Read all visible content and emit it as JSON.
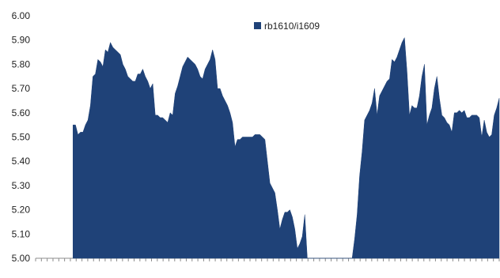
{
  "chart_data": {
    "type": "area",
    "title": "",
    "xlabel": "",
    "ylabel": "",
    "ylim": [
      5.0,
      6.0
    ],
    "yticks": [
      "6.00",
      "5.90",
      "5.80",
      "5.70",
      "5.60",
      "5.50",
      "5.40",
      "5.30",
      "5.20",
      "5.10",
      "5.00"
    ],
    "grid": false,
    "legend_position": "top-center",
    "series": [
      {
        "name": "rb1610/i1609",
        "color": "#1f4278",
        "values": [
          null,
          null,
          null,
          null,
          null,
          null,
          null,
          null,
          null,
          null,
          null,
          null,
          null,
          null,
          null,
          5.55,
          5.55,
          5.51,
          5.52,
          5.52,
          5.55,
          5.57,
          5.63,
          5.75,
          5.76,
          5.82,
          5.81,
          5.79,
          5.86,
          5.85,
          5.89,
          5.87,
          5.86,
          5.85,
          5.84,
          5.8,
          5.78,
          5.75,
          5.74,
          5.73,
          5.73,
          5.76,
          5.76,
          5.78,
          5.75,
          5.73,
          5.7,
          5.72,
          5.59,
          5.59,
          5.58,
          5.58,
          5.57,
          5.56,
          5.6,
          5.59,
          5.68,
          5.71,
          5.75,
          5.79,
          5.81,
          5.83,
          5.82,
          5.81,
          5.8,
          5.78,
          5.75,
          5.74,
          5.78,
          5.8,
          5.82,
          5.86,
          5.82,
          5.7,
          5.7,
          5.67,
          5.65,
          5.63,
          5.6,
          5.56,
          5.46,
          5.49,
          5.49,
          5.5,
          5.5,
          5.5,
          5.5,
          5.5,
          5.51,
          5.51,
          5.51,
          5.5,
          5.49,
          5.4,
          5.31,
          5.29,
          5.27,
          5.2,
          5.12,
          5.16,
          5.19,
          5.19,
          5.2,
          5.17,
          5.12,
          5.04,
          5.06,
          5.09,
          5.18,
          5.0,
          5.0,
          5.0,
          5.0,
          5.0,
          5.0,
          5.0,
          5.0,
          5.0,
          5.0,
          5.0,
          5.0,
          5.0,
          5.0,
          5.0,
          5.0,
          5.0,
          5.0,
          5.0,
          5.08,
          5.18,
          5.34,
          5.44,
          5.57,
          5.59,
          5.61,
          5.64,
          5.7,
          5.59,
          5.67,
          5.69,
          5.71,
          5.73,
          5.74,
          5.82,
          5.81,
          5.83,
          5.86,
          5.89,
          5.91,
          5.77,
          5.59,
          5.63,
          5.62,
          5.62,
          5.67,
          5.75,
          5.8,
          5.55,
          5.59,
          5.62,
          5.7,
          5.75,
          5.66,
          5.59,
          5.58,
          5.56,
          5.55,
          5.52,
          5.6,
          5.6,
          5.61,
          5.6,
          5.61,
          5.58,
          5.58,
          5.59,
          5.59,
          5.59,
          5.58,
          5.5,
          5.57,
          5.52,
          5.5,
          5.51,
          5.59,
          5.62,
          5.66
        ]
      }
    ]
  }
}
